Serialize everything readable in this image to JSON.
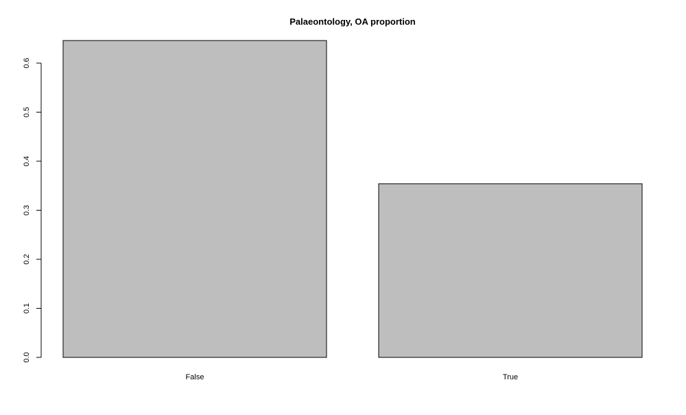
{
  "chart_data": {
    "type": "bar",
    "title": "Palaeontology, OA proportion",
    "xlabel": "",
    "ylabel": "",
    "categories": [
      "False",
      "True"
    ],
    "values": [
      0.646,
      0.354
    ],
    "ylim": [
      0,
      0.6
    ],
    "yticks": [
      0.0,
      0.1,
      0.2,
      0.3,
      0.4,
      0.5,
      0.6
    ],
    "ytick_labels": [
      "0.0",
      "0.1",
      "0.2",
      "0.3",
      "0.4",
      "0.5",
      "0.6"
    ],
    "grid": false,
    "legend": "none",
    "colors": {
      "bar_fill": "#bebebe",
      "bar_stroke": "#000000",
      "axis": "#000000",
      "background": "#ffffff"
    }
  }
}
